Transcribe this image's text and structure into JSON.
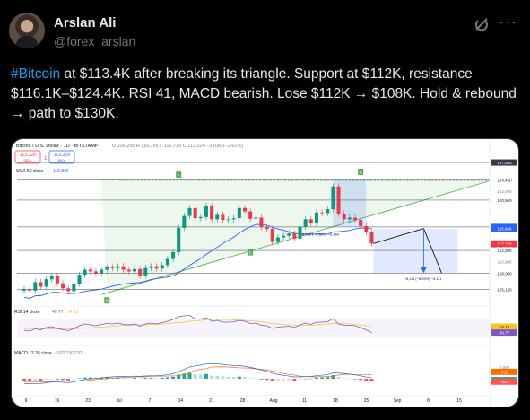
{
  "profile": {
    "name": "Arslan Ali",
    "handle": "@forex_arslan"
  },
  "tweet": {
    "hashtag": "#Bitcoin",
    "text": " at $113.4K after breaking its triangle. Support at $112K, resistance $116.1K–$124.4K. RSI 41, MACD bearish. Lose $112K → $108K. Hold & rebound → path to $130K."
  },
  "icons": {
    "grok": "grok-icon",
    "more": "more-options-icon"
  },
  "chart_header": {
    "symbol": "Bitcoin / U.S. Dollar · 1D · BITSTAMP",
    "ohlc": "O 116,295  H 116,765  L 112,730  C 113,229  −3,036 (−2.61%)",
    "sell": "113,228",
    "sell_label": "SELL",
    "buy": "113,229",
    "buy_label": "BUY",
    "sma": "SMA 50 close",
    "sma_value": "115,866"
  },
  "chart_data": {
    "type": "line",
    "title": "Bitcoin / U.S. Dollar · 1D · BITSTAMP",
    "ylim": [
      102500,
      128500
    ],
    "price_labels": [
      {
        "value": 127540,
        "text": "127,540",
        "bg": "#363a45",
        "fg": "#ffffff"
      },
      {
        "value": 124450,
        "text": "124,450",
        "bg": "#ffffff",
        "fg": "#131722"
      },
      {
        "value": 122500,
        "text": "122,500",
        "bg": "#ffffff",
        "fg": "#787b86"
      },
      {
        "value": 120900,
        "text": "120,900",
        "bg": "#ffffff",
        "fg": "#131722"
      },
      {
        "value": 116150,
        "text": "116,150",
        "bg": "#2962ff",
        "fg": "#ffffff"
      },
      {
        "value": 115866,
        "text": "115,866",
        "bg": "#2962ff",
        "fg": "#ffffff"
      },
      {
        "value": 113229,
        "text": "113,229",
        "bg": "#f23645",
        "fg": "#ffffff"
      },
      {
        "value": 112500,
        "text": "01:03:22",
        "bg": "#f23645",
        "fg": "#ffffff"
      },
      {
        "value": 112000,
        "text": "112,000",
        "bg": "#ffffff",
        "fg": "#131722"
      },
      {
        "value": 110000,
        "text": "110,000",
        "bg": "#ffffff",
        "fg": "#787b86"
      },
      {
        "value": 108000,
        "text": "108,000",
        "bg": "#ffffff",
        "fg": "#131722"
      },
      {
        "value": 105150,
        "text": "105,150",
        "bg": "#ffffff",
        "fg": "#131722"
      }
    ],
    "horizontal_levels": [
      127540,
      124450,
      120900,
      116150,
      112000,
      108000,
      105150
    ],
    "x_labels": [
      "9",
      "16",
      "23",
      "Jul",
      "7",
      "14",
      "21",
      "28",
      "Aug",
      "11",
      "18",
      "25",
      "Sep",
      "8",
      "15"
    ],
    "closes": [
      105200,
      104900,
      106400,
      105600,
      106900,
      107500,
      106200,
      105300,
      104800,
      106100,
      107700,
      108600,
      108300,
      107900,
      108600,
      109000,
      108900,
      109200,
      108600,
      108300,
      108700,
      107600,
      108900,
      109200,
      108800,
      109400,
      110500,
      111700,
      116000,
      118100,
      119500,
      117700,
      117900,
      119900,
      117500,
      118300,
      117400,
      117500,
      117700,
      119500,
      118900,
      117600,
      117800,
      116100,
      115800,
      113500,
      114300,
      114600,
      115000,
      114100,
      116200,
      117500,
      116800,
      118700,
      118600,
      119300,
      123300,
      118500,
      117500,
      117800,
      117400,
      116300,
      115200,
      113229
    ],
    "projection": [
      {
        "label": "start",
        "value": 113229
      },
      {
        "label": "target-1",
        "value": 115866
      },
      {
        "label": "target-2",
        "value": 108000
      }
    ],
    "annotations": {
      "measure_1": "−8,188 (−6.58%) −8,188",
      "measure_2": "−8,111 (−6.99%) −8,111"
    },
    "rsi": {
      "label": "RSI 14 close",
      "value": "40.77",
      "ma_value": "54.13",
      "ylim": [
        20,
        80
      ],
      "values": [
        46,
        44,
        49,
        47,
        52,
        54,
        50,
        47,
        45,
        50,
        56,
        60,
        58,
        56,
        59,
        61,
        60,
        62,
        59,
        58,
        60,
        55,
        60,
        62,
        60,
        63,
        66,
        70,
        76,
        78,
        79,
        71,
        71,
        74,
        66,
        68,
        64,
        64,
        65,
        68,
        66,
        61,
        62,
        57,
        56,
        50,
        53,
        54,
        55,
        52,
        58,
        62,
        59,
        64,
        64,
        65,
        72,
        60,
        57,
        57,
        56,
        52,
        47,
        40.77
      ],
      "ma_values": [
        50,
        50,
        49,
        49,
        49,
        49,
        49,
        49,
        49,
        49,
        50,
        51,
        52,
        52,
        53,
        54,
        55,
        56,
        57,
        57,
        58,
        58,
        58,
        59,
        59,
        60,
        61,
        62,
        63,
        64,
        66,
        67,
        68,
        69,
        70,
        70,
        70,
        70,
        69,
        69,
        68,
        67,
        66,
        65,
        63,
        61,
        60,
        59,
        58,
        57,
        57,
        57,
        57,
        58,
        59,
        60,
        61,
        61,
        61,
        60,
        59,
        58,
        56,
        54.13
      ]
    },
    "macd": {
      "label": "MACD 12 26 close",
      "values_text": "−502  230  732",
      "right_labels": [
        "2,000",
        "732",
        "230",
        "-502"
      ],
      "ylim": [
        -2500,
        3600
      ],
      "hist": [
        -300,
        -420,
        -300,
        -330,
        -150,
        -40,
        -120,
        -200,
        -280,
        -140,
        80,
        200,
        220,
        190,
        240,
        260,
        230,
        230,
        180,
        140,
        140,
        60,
        130,
        140,
        100,
        150,
        240,
        360,
        720,
        900,
        1020,
        760,
        700,
        820,
        540,
        520,
        400,
        340,
        290,
        360,
        280,
        120,
        80,
        -120,
        -200,
        -420,
        -380,
        -330,
        -280,
        -320,
        -120,
        20,
        40,
        200,
        240,
        280,
        620,
        320,
        120,
        40,
        -40,
        -200,
        -380,
        -502
      ],
      "macd_line": [
        -800,
        -900,
        -850,
        -820,
        -700,
        -560,
        -560,
        -600,
        -660,
        -540,
        -330,
        -120,
        -10,
        60,
        160,
        260,
        320,
        390,
        410,
        420,
        440,
        420,
        470,
        520,
        540,
        590,
        700,
        860,
        1230,
        1630,
        2040,
        2220,
        2350,
        2570,
        2580,
        2570,
        2480,
        2380,
        2270,
        2250,
        2150,
        1960,
        1780,
        1520,
        1290,
        950,
        750,
        580,
        460,
        320,
        320,
        380,
        400,
        520,
        620,
        700,
        1020,
        990,
        900,
        800,
        680,
        500,
        300,
        230
      ],
      "signal_line": [
        -500,
        -480,
        -550,
        -490,
        -550,
        -520,
        -440,
        -400,
        -380,
        -400,
        -410,
        -320,
        -230,
        -130,
        -80,
        0,
        90,
        160,
        230,
        280,
        300,
        360,
        340,
        380,
        440,
        440,
        460,
        500,
        510,
        730,
        1020,
        1460,
        1650,
        1750,
        2040,
        2050,
        2080,
        2040,
        1980,
        1890,
        1870,
        1840,
        1700,
        1640,
        1490,
        1370,
        1130,
        910,
        740,
        640,
        440,
        360,
        360,
        320,
        380,
        420,
        400,
        670,
        780,
        760,
        720,
        700,
        680,
        732
      ],
      "colors": {
        "macd": "#2962ff",
        "signal": "#ff6d00"
      }
    },
    "right_axis_rsi": [
      "54.13",
      "40.77"
    ],
    "colors": {
      "up": "#089981",
      "down": "#f23645",
      "triangle": "#4caf50",
      "sma": "#2962ff",
      "rsi": "#7e57c2",
      "rsi_ma": "#f7c52b"
    },
    "grid": false,
    "legend": "top-left"
  },
  "markers": [
    "A",
    "B",
    "C",
    "D"
  ]
}
